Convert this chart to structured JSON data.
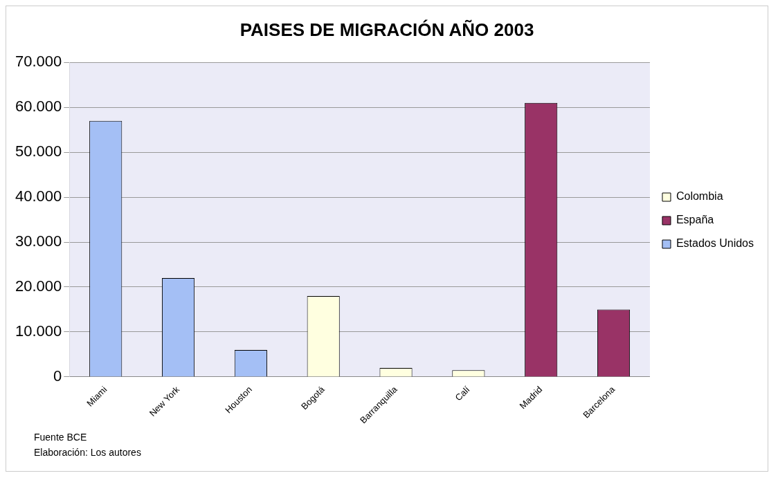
{
  "chart_data": {
    "type": "bar",
    "title": "PAISES DE MIGRACIÓN AÑO 2003",
    "categories": [
      "Miami",
      "New York",
      "Houston",
      "Bogotá",
      "Barranquilla",
      "Calí",
      "Madrid",
      "Barcelona"
    ],
    "series": [
      {
        "name": "Colombia",
        "color": "#ffffe0",
        "values": [
          null,
          null,
          null,
          18000,
          2000,
          1500,
          null,
          null
        ]
      },
      {
        "name": "España",
        "color": "#993366",
        "values": [
          null,
          null,
          null,
          null,
          null,
          null,
          61000,
          15000
        ]
      },
      {
        "name": "Estados Unidos",
        "color": "#a4bff5",
        "values": [
          57000,
          22000,
          6000,
          null,
          null,
          null,
          null,
          null
        ]
      }
    ],
    "ylim": [
      0,
      70000
    ],
    "yticks": [
      0,
      {
        "value": 10000,
        "label": "10.000"
      },
      {
        "value": 20000,
        "label": "20.000"
      },
      {
        "value": 30000,
        "label": "30.000"
      },
      {
        "value": 40000,
        "label": "40.000"
      },
      {
        "value": 50000,
        "label": "50.000"
      },
      {
        "value": 60000,
        "label": "60.000"
      },
      {
        "value": 70000,
        "label": "70.000"
      }
    ],
    "grid": "y",
    "legend": "right",
    "annotations": [
      "Fuente BCE",
      "Elaboración: Los autores"
    ]
  }
}
